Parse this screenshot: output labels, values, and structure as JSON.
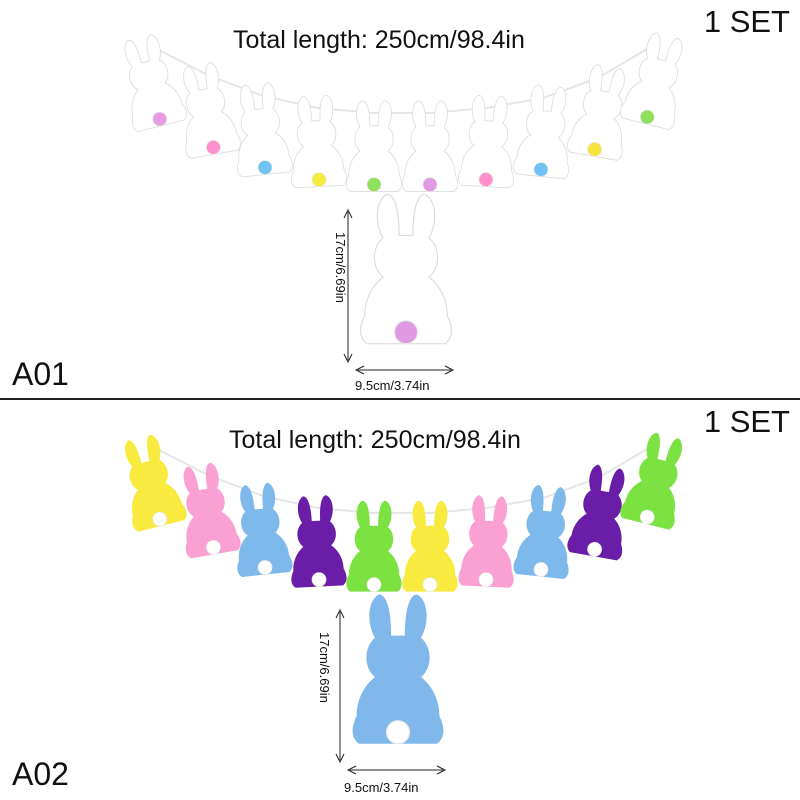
{
  "panels": [
    {
      "id": "A01",
      "code": "A01",
      "set_label": "1 SET",
      "total_length": "Total length: 250cm/98.4in",
      "height_label": "17cm/6.69in",
      "width_label": "9.5cm/3.74in",
      "bunny_color": "#ffffff",
      "tail_colors": [
        "#e79be4",
        "#ff92cc",
        "#6fc3f3",
        "#f6ec3c",
        "#8fe05a",
        "#df9ae3",
        "#ff92cc",
        "#6fc3f3",
        "#f6e43c",
        "#8fe05a"
      ],
      "single_tail_color": "#df9ae3"
    },
    {
      "id": "A02",
      "code": "A02",
      "set_label": "1 SET",
      "total_length": "Total length: 250cm/98.4in",
      "height_label": "17cm/6.69in",
      "width_label": "9.5cm/3.74in",
      "bunny_colors": [
        "#f8ea3e",
        "#fba0d2",
        "#7eb9ec",
        "#6a1ea8",
        "#7be241",
        "#f8ea3e",
        "#fba0d2",
        "#7eb9ec",
        "#6a1ea8",
        "#7be241"
      ],
      "single_bunny_color": "#80b8ec",
      "tail_color": "#ffffff"
    }
  ]
}
